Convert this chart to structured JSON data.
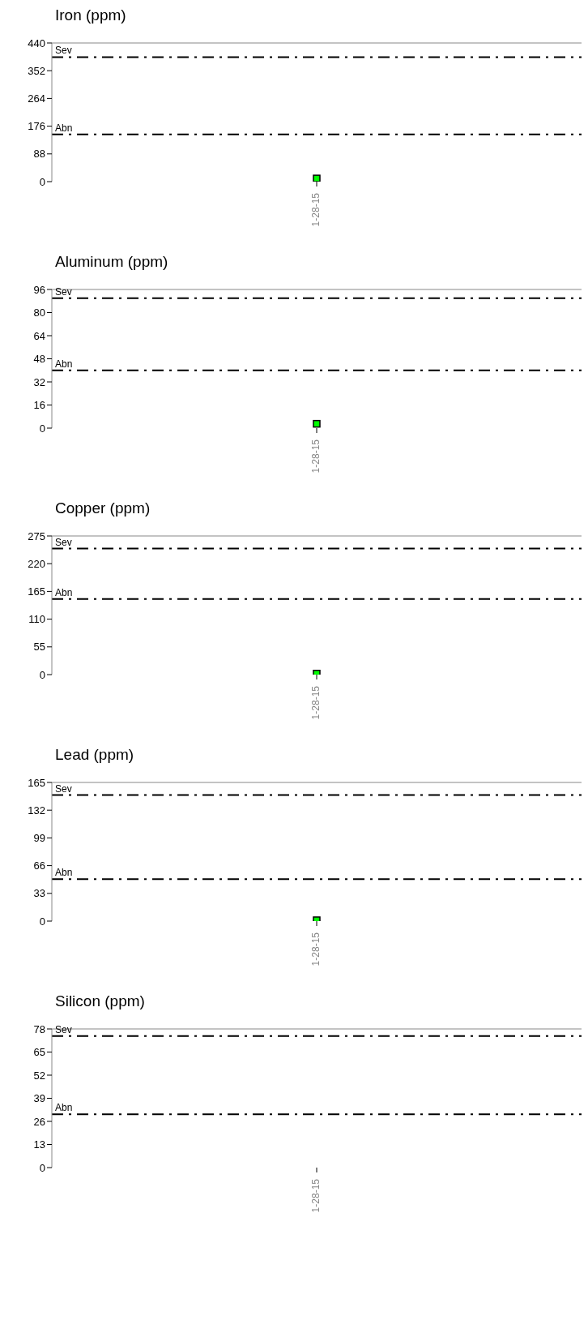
{
  "chart_data": [
    {
      "type": "scatter",
      "title": "Iron (ppm)",
      "categories": [
        "1-28-15"
      ],
      "series": [
        {
          "color": "#00ff00",
          "values": [
            10
          ]
        }
      ],
      "ylim": [
        0,
        440
      ],
      "yticks": [
        0,
        88,
        176,
        264,
        352,
        440
      ],
      "marker": "square",
      "grid": false,
      "ref_lines": [
        {
          "axis": "y",
          "value": 395,
          "label": "Sev",
          "line_style": "dashed"
        },
        {
          "axis": "y",
          "value": 150,
          "label": "Abn",
          "line_style": "dashed"
        }
      ]
    },
    {
      "type": "scatter",
      "title": "Aluminum (ppm)",
      "categories": [
        "1-28-15"
      ],
      "series": [
        {
          "color": "#00ff00",
          "values": [
            3
          ]
        }
      ],
      "ylim": [
        0,
        96
      ],
      "yticks": [
        0,
        16,
        32,
        48,
        64,
        80,
        96
      ],
      "marker": "square",
      "grid": false,
      "ref_lines": [
        {
          "axis": "y",
          "value": 90,
          "label": "Sev",
          "line_style": "dashed"
        },
        {
          "axis": "y",
          "value": 40,
          "label": "Abn",
          "line_style": "dashed"
        }
      ]
    },
    {
      "type": "scatter",
      "title": "Copper (ppm)",
      "categories": [
        "1-28-15"
      ],
      "series": [
        {
          "color": "#00ff00",
          "values": [
            2
          ]
        }
      ],
      "ylim": [
        0,
        275
      ],
      "yticks": [
        0,
        55,
        110,
        165,
        220,
        275
      ],
      "marker": "square",
      "grid": false,
      "ref_lines": [
        {
          "axis": "y",
          "value": 250,
          "label": "Sev",
          "line_style": "dashed"
        },
        {
          "axis": "y",
          "value": 150,
          "label": "Abn",
          "line_style": "dashed"
        }
      ]
    },
    {
      "type": "scatter",
      "title": "Lead (ppm)",
      "categories": [
        "1-28-15"
      ],
      "series": [
        {
          "color": "#00ff00",
          "values": [
            1
          ]
        }
      ],
      "ylim": [
        0,
        165
      ],
      "yticks": [
        0,
        33,
        66,
        99,
        132,
        165
      ],
      "marker": "square",
      "grid": false,
      "ref_lines": [
        {
          "axis": "y",
          "value": 150,
          "label": "Sev",
          "line_style": "dashed"
        },
        {
          "axis": "y",
          "value": 50,
          "label": "Abn",
          "line_style": "dashed"
        }
      ]
    },
    {
      "type": "scatter",
      "title": "Silicon (ppm)",
      "categories": [
        "1-28-15"
      ],
      "series": [
        {
          "color": "#00ff00",
          "values": [
            null
          ]
        }
      ],
      "ylim": [
        0,
        78
      ],
      "yticks": [
        0,
        13,
        26,
        39,
        52,
        65,
        78
      ],
      "marker": "square",
      "grid": false,
      "ref_lines": [
        {
          "axis": "y",
          "value": 74,
          "label": "Sev",
          "line_style": "dashed"
        },
        {
          "axis": "y",
          "value": 30,
          "label": "Abn",
          "line_style": "dashed"
        }
      ]
    }
  ]
}
